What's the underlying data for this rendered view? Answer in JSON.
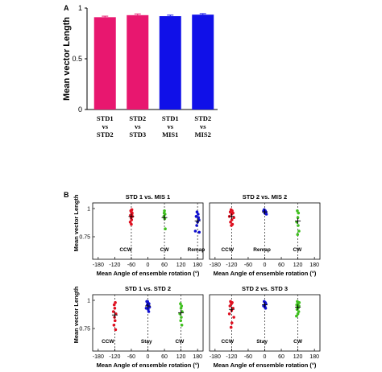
{
  "panel_a_label": "A",
  "panel_b_label": "B",
  "chart_data": [
    {
      "type": "bar",
      "panel": "A",
      "ylabel": "Mean vector Length",
      "ylim": [
        0,
        1
      ],
      "yticks": [
        "0",
        "0.5",
        "1"
      ],
      "categories": [
        {
          "line1": "STD1",
          "line2": "vs",
          "line3": "STD2"
        },
        {
          "line1": "STD2",
          "line2": "vs",
          "line3": "STD3"
        },
        {
          "line1": "STD1",
          "line2": "vs",
          "line3": "MIS1"
        },
        {
          "line1": "STD2",
          "line2": "vs",
          "line3": "MIS2"
        }
      ],
      "values": [
        0.91,
        0.93,
        0.92,
        0.935
      ],
      "errors": [
        0.01,
        0.012,
        0.01,
        0.01
      ],
      "colors": [
        "#e8176f",
        "#e8176f",
        "#1010e8",
        "#1010e8"
      ]
    },
    {
      "type": "scatter",
      "panel": "B",
      "title": "STD 1 vs. MIS 1",
      "xlabel": "Mean Angle of ensemble rotation (°)",
      "ylabel": "Mean vector Length",
      "xlim": [
        -200,
        200
      ],
      "ylim": [
        0.55,
        1.05
      ],
      "xticks": [
        "-180",
        "-120",
        "-60",
        "0",
        "60",
        "120",
        "180"
      ],
      "yticks": [
        "0.75",
        "1"
      ],
      "dashed_lines": [
        -60,
        60,
        180
      ],
      "annotations": [
        {
          "text": "CCW",
          "x": -80
        },
        {
          "text": "CW",
          "x": 60
        },
        {
          "text": "Remap",
          "x": 175
        }
      ],
      "series": [
        {
          "color": "#e01020",
          "x": [
            -62,
            -60,
            -58,
            -63,
            -57,
            -61,
            -59,
            -64,
            -60,
            -56,
            -58
          ],
          "y": [
            0.98,
            0.97,
            0.95,
            0.94,
            0.96,
            0.92,
            0.9,
            0.88,
            0.86,
            0.93,
            0.99
          ]
        },
        {
          "color": "#40c020",
          "x": [
            60,
            62,
            58,
            61,
            63,
            59
          ],
          "y": [
            0.98,
            0.95,
            0.93,
            0.91,
            0.82,
            0.96
          ]
        },
        {
          "color": "#1010d0",
          "x": [
            178,
            182,
            175,
            185,
            180,
            172,
            186,
            177,
            183
          ],
          "y": [
            0.97,
            0.95,
            0.93,
            0.9,
            0.88,
            0.8,
            0.79,
            0.85,
            0.92
          ]
        }
      ],
      "means": [
        {
          "x": -60,
          "y": 0.93
        },
        {
          "x": 60,
          "y": 0.92
        },
        {
          "x": 180,
          "y": 0.89
        }
      ]
    },
    {
      "type": "scatter",
      "panel": "B",
      "title": "STD 2 vs. MIS 2",
      "xlabel": "Mean Angle of ensemble rotation (°)",
      "ylabel": "",
      "xlim": [
        -200,
        200
      ],
      "ylim": [
        0.55,
        1.05
      ],
      "xticks": [
        "-180",
        "-120",
        "-60",
        "0",
        "60",
        "120",
        "180"
      ],
      "yticks": [],
      "dashed_lines": [
        -120,
        0,
        120
      ],
      "annotations": [
        {
          "text": "CCW",
          "x": -135
        },
        {
          "text": "Remap",
          "x": -10
        },
        {
          "text": "CW",
          "x": 118
        }
      ],
      "series": [
        {
          "color": "#e01020",
          "x": [
            -122,
            -118,
            -125,
            -115,
            -120,
            -128,
            -112,
            -119,
            -124,
            -117,
            -121
          ],
          "y": [
            0.99,
            0.98,
            0.97,
            0.96,
            0.95,
            0.93,
            0.92,
            0.9,
            0.88,
            0.86,
            0.85
          ]
        },
        {
          "color": "#1010d0",
          "x": [
            -2,
            2,
            4,
            0,
            6,
            -4
          ],
          "y": [
            0.99,
            0.98,
            0.97,
            0.96,
            0.95,
            0.98
          ]
        },
        {
          "color": "#40c020",
          "x": [
            118,
            122,
            120,
            116,
            124,
            119,
            121
          ],
          "y": [
            0.98,
            0.96,
            0.92,
            0.88,
            0.8,
            0.77,
            0.85
          ]
        }
      ],
      "means": [
        {
          "x": -120,
          "y": 0.93
        },
        {
          "x": 0,
          "y": 0.97
        },
        {
          "x": 120,
          "y": 0.89
        }
      ]
    },
    {
      "type": "scatter",
      "panel": "B",
      "title": "STD 1 vs. STD 2",
      "xlabel": "Mean Angle of ensemble rotation (°)",
      "ylabel": "Mean vector Length",
      "xlim": [
        -200,
        200
      ],
      "ylim": [
        0.55,
        1.05
      ],
      "xticks": [
        "-180",
        "-120",
        "-60",
        "0",
        "60",
        "120",
        "180"
      ],
      "yticks": [
        "0.75",
        "1"
      ],
      "dashed_lines": [
        -120,
        0,
        120
      ],
      "annotations": [
        {
          "text": "CCW",
          "x": -145
        },
        {
          "text": "Stay",
          "x": -5
        },
        {
          "text": "CW",
          "x": 115
        }
      ],
      "series": [
        {
          "color": "#e01020",
          "x": [
            -118,
            -122,
            -120,
            -125,
            -116,
            -121,
            -119,
            -123,
            -117
          ],
          "y": [
            0.98,
            0.96,
            0.93,
            0.9,
            0.88,
            0.85,
            0.82,
            0.78,
            0.74
          ]
        },
        {
          "color": "#1010d0",
          "x": [
            -4,
            0,
            4,
            -2,
            2,
            6,
            -6,
            1,
            3,
            -1
          ],
          "y": [
            0.99,
            0.98,
            0.97,
            0.96,
            0.95,
            0.94,
            0.93,
            0.92,
            0.9,
            0.99
          ]
        },
        {
          "color": "#40c020",
          "x": [
            118,
            122,
            120,
            124,
            116,
            121,
            119,
            123
          ],
          "y": [
            0.97,
            0.95,
            0.93,
            0.9,
            0.88,
            0.85,
            0.82,
            0.78
          ]
        }
      ],
      "means": [
        {
          "x": -120,
          "y": 0.87
        },
        {
          "x": 0,
          "y": 0.95
        },
        {
          "x": 120,
          "y": 0.89
        }
      ]
    },
    {
      "type": "scatter",
      "panel": "B",
      "title": "STD 2 vs. STD 3",
      "xlabel": "Mean Angle of ensemble rotation (°)",
      "ylabel": "",
      "xlim": [
        -200,
        200
      ],
      "ylim": [
        0.55,
        1.05
      ],
      "xticks": [
        "-180",
        "-120",
        "-60",
        "0",
        "60",
        "120",
        "180"
      ],
      "yticks": [],
      "dashed_lines": [
        -120,
        0,
        120
      ],
      "annotations": [
        {
          "text": "CCW",
          "x": -135
        },
        {
          "text": "Stay",
          "x": -10
        },
        {
          "text": "CW",
          "x": 120
        }
      ],
      "series": [
        {
          "color": "#e01020",
          "x": [
            -124,
            -118,
            -121,
            -126,
            -115,
            -120,
            -128,
            -112,
            -119,
            -122
          ],
          "y": [
            0.99,
            0.98,
            0.97,
            0.95,
            0.93,
            0.91,
            0.88,
            0.85,
            0.8,
            0.76
          ]
        },
        {
          "color": "#1010d0",
          "x": [
            -2,
            2,
            4,
            0,
            -4,
            1,
            3
          ],
          "y": [
            0.99,
            0.98,
            0.97,
            0.96,
            0.95,
            0.94,
            0.93
          ]
        },
        {
          "color": "#40c020",
          "x": [
            118,
            122,
            120,
            116,
            124,
            119,
            121,
            117,
            123,
            120,
            115,
            125
          ],
          "y": [
            0.99,
            0.98,
            0.97,
            0.96,
            0.95,
            0.94,
            0.93,
            0.92,
            0.9,
            0.88,
            0.86,
            0.98
          ]
        }
      ],
      "means": [
        {
          "x": -120,
          "y": 0.92
        },
        {
          "x": 0,
          "y": 0.96
        },
        {
          "x": 120,
          "y": 0.94
        }
      ]
    }
  ]
}
